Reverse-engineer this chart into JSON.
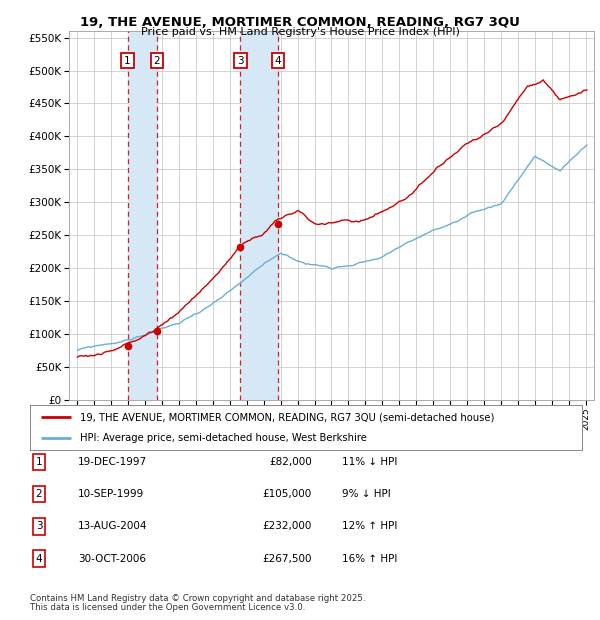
{
  "title1": "19, THE AVENUE, MORTIMER COMMON, READING, RG7 3QU",
  "title2": "Price paid vs. HM Land Registry's House Price Index (HPI)",
  "yticks": [
    0,
    50000,
    100000,
    150000,
    200000,
    250000,
    300000,
    350000,
    400000,
    450000,
    500000,
    550000
  ],
  "ytick_labels": [
    "£0",
    "£50K",
    "£100K",
    "£150K",
    "£200K",
    "£250K",
    "£300K",
    "£350K",
    "£400K",
    "£450K",
    "£500K",
    "£550K"
  ],
  "xlim_start": 1994.5,
  "xlim_end": 2025.5,
  "ylim_min": 0,
  "ylim_max": 560000,
  "sale_dates": [
    1997.96,
    1999.69,
    2004.62,
    2006.83
  ],
  "sale_prices": [
    82000,
    105000,
    232000,
    267500
  ],
  "sale_labels": [
    "1",
    "2",
    "3",
    "4"
  ],
  "legend_line1": "19, THE AVENUE, MORTIMER COMMON, READING, RG7 3QU (semi-detached house)",
  "legend_line2": "HPI: Average price, semi-detached house, West Berkshire",
  "table_rows": [
    [
      "1",
      "19-DEC-1997",
      "£82,000",
      "11% ↓ HPI"
    ],
    [
      "2",
      "10-SEP-1999",
      "£105,000",
      "9% ↓ HPI"
    ],
    [
      "3",
      "13-AUG-2004",
      "£232,000",
      "12% ↑ HPI"
    ],
    [
      "4",
      "30-OCT-2006",
      "£267,500",
      "16% ↑ HPI"
    ]
  ],
  "footnote1": "Contains HM Land Registry data © Crown copyright and database right 2025.",
  "footnote2": "This data is licensed under the Open Government Licence v3.0.",
  "hpi_line_color": "#6baed6",
  "price_line_color": "#cc0000",
  "shade_color": "#d6e8f5",
  "dashed_color": "#cc0000",
  "grid_color": "#cccccc",
  "background_color": "#ffffff"
}
